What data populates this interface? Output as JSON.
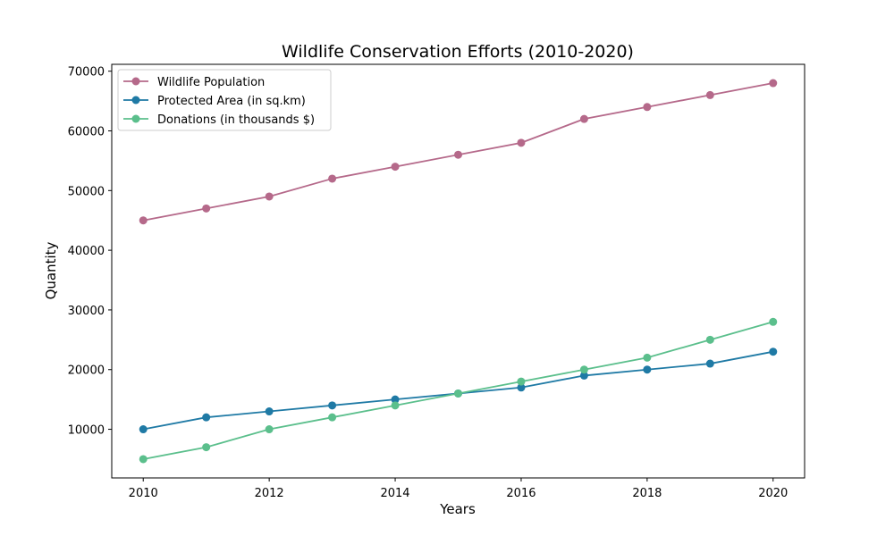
{
  "chart_data": {
    "type": "line",
    "title": "Wildlife Conservation Efforts (2010-2020)",
    "xlabel": "Years",
    "ylabel": "Quantity",
    "x": [
      2010,
      2011,
      2012,
      2013,
      2014,
      2015,
      2016,
      2017,
      2018,
      2019,
      2020
    ],
    "x_ticks": [
      2010,
      2012,
      2014,
      2016,
      2018,
      2020
    ],
    "y_ticks": [
      10000,
      20000,
      30000,
      40000,
      50000,
      60000,
      70000
    ],
    "xlim": [
      2009.5,
      2020.5
    ],
    "ylim": [
      1850,
      71150
    ],
    "grid": false,
    "legend_position": "top-left",
    "series": [
      {
        "name": "Wildlife Population",
        "color": "#b5698a",
        "marker": "circle",
        "values": [
          45000,
          47000,
          49000,
          52000,
          54000,
          56000,
          58000,
          62000,
          64000,
          66000,
          68000
        ]
      },
      {
        "name": "Protected Area (in sq.km)",
        "color": "#1f7aa5",
        "marker": "circle",
        "values": [
          10000,
          12000,
          13000,
          14000,
          15000,
          16000,
          17000,
          19000,
          20000,
          21000,
          23000
        ]
      },
      {
        "name": "Donations (in thousands $)",
        "color": "#5bbf8c",
        "marker": "circle",
        "values": [
          5000,
          7000,
          10000,
          12000,
          14000,
          16000,
          18000,
          20000,
          22000,
          25000,
          28000
        ]
      }
    ]
  }
}
